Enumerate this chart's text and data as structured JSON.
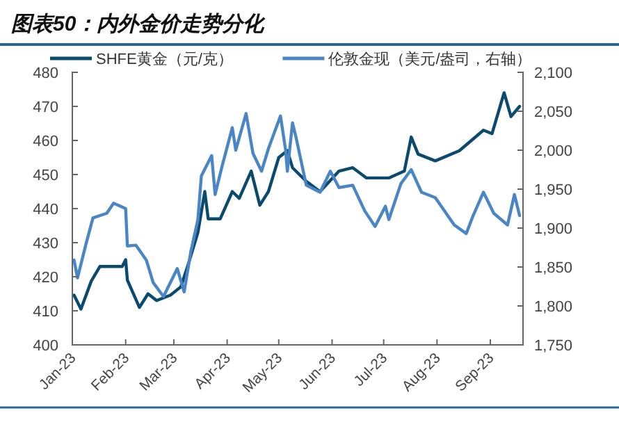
{
  "chart_data": {
    "type": "line",
    "title": "图表50：内外金价走势分化",
    "legend": "top",
    "xlim": [
      "2023-01-01",
      "2023-09-20"
    ],
    "xticks": [
      {
        "value": "2023-01-01",
        "label": "Jan-23"
      },
      {
        "value": "2023-02-01",
        "label": "Feb-23"
      },
      {
        "value": "2023-03-01",
        "label": "Mar-23"
      },
      {
        "value": "2023-04-01",
        "label": "Apr-23"
      },
      {
        "value": "2023-05-01",
        "label": "May-23"
      },
      {
        "value": "2023-06-01",
        "label": "Jun-23"
      },
      {
        "value": "2023-07-01",
        "label": "Jul-23"
      },
      {
        "value": "2023-08-01",
        "label": "Aug-23"
      },
      {
        "value": "2023-09-01",
        "label": "Sep-23"
      }
    ],
    "ylim": [
      400,
      480
    ],
    "yticks": [
      400,
      410,
      420,
      430,
      440,
      450,
      460,
      470,
      480
    ],
    "y2lim": [
      1750,
      2100
    ],
    "y2ticks": [
      {
        "value": 1750,
        "label": "1,750"
      },
      {
        "value": 1800,
        "label": "1,800"
      },
      {
        "value": 1850,
        "label": "1,850"
      },
      {
        "value": 1900,
        "label": "1,900"
      },
      {
        "value": 1950,
        "label": "1,950"
      },
      {
        "value": 2000,
        "label": "2,000"
      },
      {
        "value": 2050,
        "label": "2,050"
      },
      {
        "value": 2100,
        "label": "2,100"
      }
    ],
    "series": [
      {
        "name": "SHFE黄金（元/克）",
        "color": "#0b4a6f",
        "x": [
          "2023-01-02",
          "2023-01-06",
          "2023-01-12",
          "2023-01-17",
          "2023-01-24",
          "2023-01-30",
          "2023-02-01",
          "2023-02-02",
          "2023-02-09",
          "2023-02-14",
          "2023-02-19",
          "2023-02-27",
          "2023-03-05",
          "2023-03-09",
          "2023-03-15",
          "2023-03-19",
          "2023-03-21",
          "2023-03-28",
          "2023-04-04",
          "2023-04-08",
          "2023-04-15",
          "2023-04-20",
          "2023-04-25",
          "2023-05-01",
          "2023-05-06",
          "2023-05-09",
          "2023-05-17",
          "2023-05-25",
          "2023-06-05",
          "2023-06-13",
          "2023-06-21",
          "2023-07-04",
          "2023-07-13",
          "2023-07-17",
          "2023-07-21",
          "2023-07-31",
          "2023-08-14",
          "2023-08-28",
          "2023-09-02",
          "2023-09-09",
          "2023-09-13",
          "2023-09-18"
        ],
        "values": [
          414.6,
          410.5,
          418.7,
          423,
          423,
          423,
          425,
          419,
          411,
          415,
          413,
          414.6,
          417,
          423,
          433,
          445,
          437,
          437,
          445,
          443,
          451,
          441,
          445,
          455,
          457,
          452,
          448,
          445,
          451,
          452,
          449,
          449,
          451,
          461,
          456,
          454,
          457,
          463,
          462,
          474,
          467,
          470
        ]
      },
      {
        "name": "伦敦金现（美元/盎司，右轴）",
        "color": "#4a86c5",
        "axis": "y2",
        "x": [
          "2023-01-02",
          "2023-01-04",
          "2023-01-09",
          "2023-01-13",
          "2023-01-21",
          "2023-01-25",
          "2023-02-01",
          "2023-02-02",
          "2023-02-07",
          "2023-02-13",
          "2023-02-17",
          "2023-02-23",
          "2023-03-03",
          "2023-03-07",
          "2023-03-11",
          "2023-03-15",
          "2023-03-17",
          "2023-03-23",
          "2023-03-25",
          "2023-03-29",
          "2023-04-04",
          "2023-04-06",
          "2023-04-12",
          "2023-04-16",
          "2023-04-21",
          "2023-04-25",
          "2023-05-02",
          "2023-05-05",
          "2023-05-06",
          "2023-05-09",
          "2023-05-11",
          "2023-05-17",
          "2023-05-25",
          "2023-05-31",
          "2023-06-05",
          "2023-06-13",
          "2023-06-20",
          "2023-06-26",
          "2023-07-02",
          "2023-07-04",
          "2023-07-11",
          "2023-07-17",
          "2023-07-23",
          "2023-07-31",
          "2023-08-11",
          "2023-08-18",
          "2023-08-22",
          "2023-08-28",
          "2023-09-03",
          "2023-09-11",
          "2023-09-15",
          "2023-09-18"
        ],
        "values": [
          1859,
          1836,
          1880,
          1913,
          1919,
          1932,
          1925,
          1877,
          1878,
          1859,
          1830,
          1812,
          1848,
          1818,
          1871,
          1911,
          1967,
          1993,
          1943,
          1979,
          2029,
          2000,
          2047,
          1996,
          1973,
          2002,
          2044,
          2000,
          1973,
          2035,
          2017,
          1955,
          1946,
          1973,
          1952,
          1955,
          1922,
          1902,
          1928,
          1911,
          1957,
          1975,
          1946,
          1939,
          1904,
          1893,
          1916,
          1946,
          1919,
          1904,
          1943,
          1916
        ]
      }
    ]
  }
}
